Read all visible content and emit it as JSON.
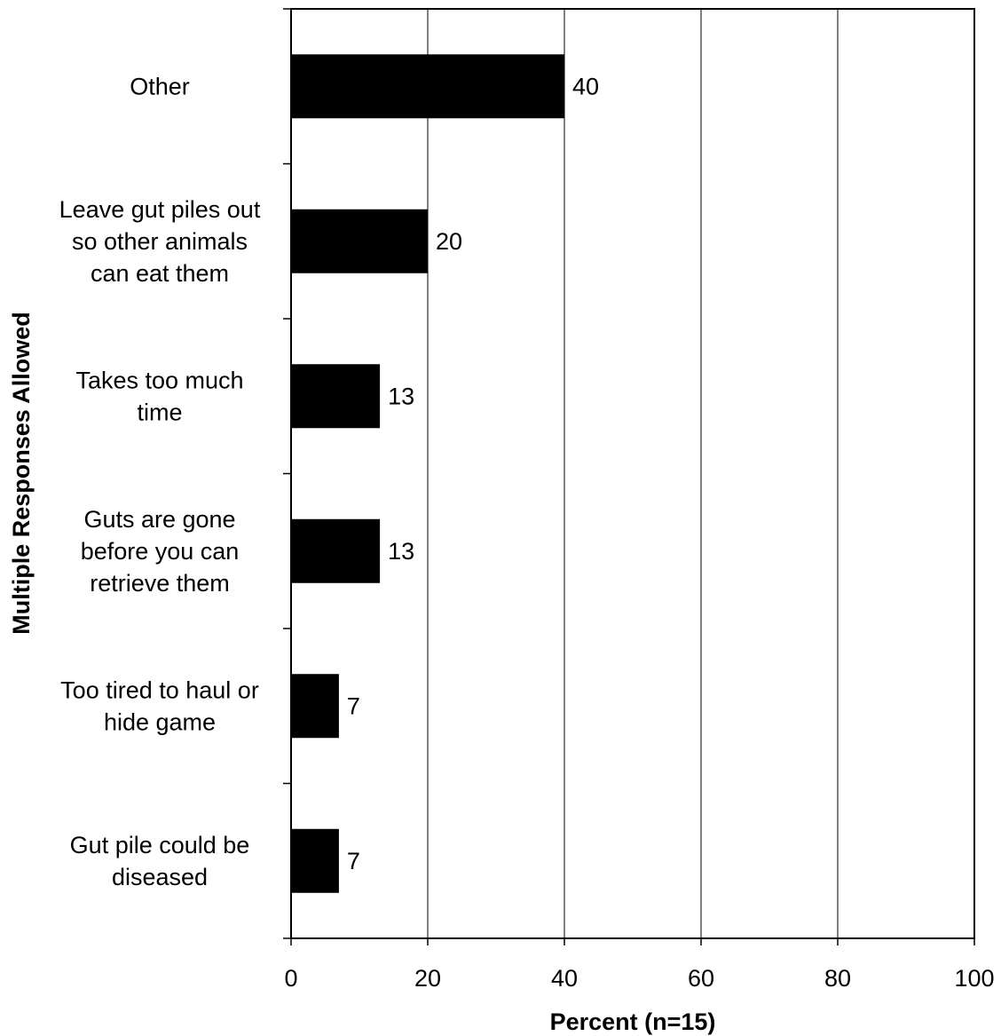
{
  "chart_data": {
    "type": "bar",
    "orientation": "horizontal",
    "categories": [
      [
        "Other"
      ],
      [
        "Leave gut piles out",
        "so other animals",
        "can eat them"
      ],
      [
        "Takes too much",
        "time"
      ],
      [
        "Guts are gone",
        "before you can",
        "retrieve them"
      ],
      [
        "Too tired to haul or",
        "hide game"
      ],
      [
        "Gut pile could be",
        "diseased"
      ]
    ],
    "values": [
      40,
      20,
      13,
      13,
      7,
      7
    ],
    "data_labels": [
      "40",
      "20",
      "13",
      "13",
      "7",
      "7"
    ],
    "xlabel": "Percent (n=15)",
    "ylabel": "Multiple Responses Allowed",
    "xlim": [
      0,
      100
    ],
    "xticks": [
      "0",
      "20",
      "40",
      "60",
      "80",
      "100"
    ],
    "grid": "vertical",
    "bar_color": "#000000"
  }
}
